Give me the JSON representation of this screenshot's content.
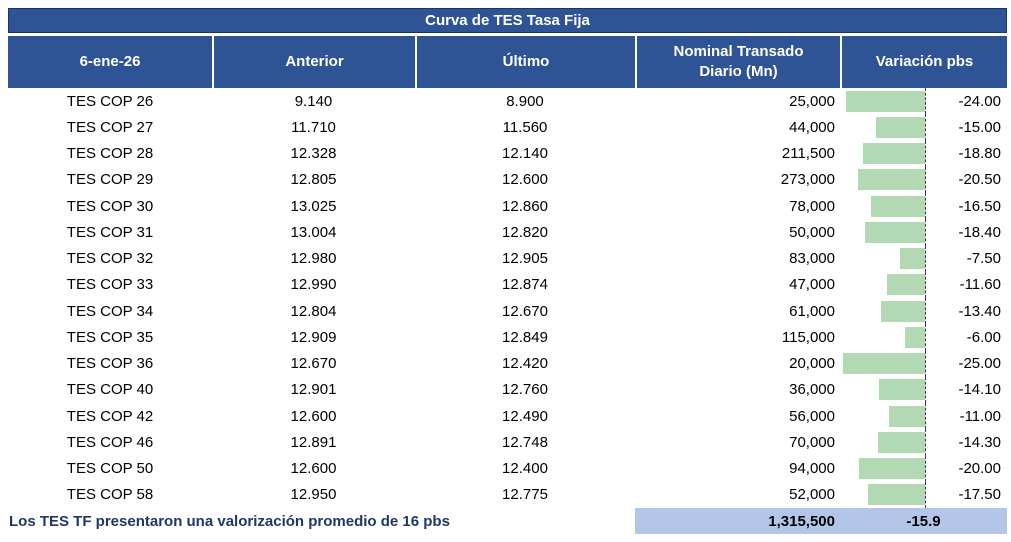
{
  "title": "Curva de TES Tasa Fija",
  "columns": {
    "date": "6-ene-26",
    "anterior": "Anterior",
    "ultimo": "Último",
    "nominal": "Nominal Transado Diario (Mn)",
    "variacion": "Variación pbs"
  },
  "rows": [
    {
      "label": "TES COP 26",
      "anterior": "9.140",
      "ultimo": "8.900",
      "nominal": "25,000",
      "variacion": -24.0,
      "variacion_label": "-24.00"
    },
    {
      "label": "TES COP 27",
      "anterior": "11.710",
      "ultimo": "11.560",
      "nominal": "44,000",
      "variacion": -15.0,
      "variacion_label": "-15.00"
    },
    {
      "label": "TES COP 28",
      "anterior": "12.328",
      "ultimo": "12.140",
      "nominal": "211,500",
      "variacion": -18.8,
      "variacion_label": "-18.80"
    },
    {
      "label": "TES COP 29",
      "anterior": "12.805",
      "ultimo": "12.600",
      "nominal": "273,000",
      "variacion": -20.5,
      "variacion_label": "-20.50"
    },
    {
      "label": "TES COP 30",
      "anterior": "13.025",
      "ultimo": "12.860",
      "nominal": "78,000",
      "variacion": -16.5,
      "variacion_label": "-16.50"
    },
    {
      "label": "TES COP 31",
      "anterior": "13.004",
      "ultimo": "12.820",
      "nominal": "50,000",
      "variacion": -18.4,
      "variacion_label": "-18.40"
    },
    {
      "label": "TES COP 32",
      "anterior": "12.980",
      "ultimo": "12.905",
      "nominal": "83,000",
      "variacion": -7.5,
      "variacion_label": "-7.50"
    },
    {
      "label": "TES COP 33",
      "anterior": "12.990",
      "ultimo": "12.874",
      "nominal": "47,000",
      "variacion": -11.6,
      "variacion_label": "-11.60"
    },
    {
      "label": "TES COP 34",
      "anterior": "12.804",
      "ultimo": "12.670",
      "nominal": "61,000",
      "variacion": -13.4,
      "variacion_label": "-13.40"
    },
    {
      "label": "TES COP 35",
      "anterior": "12.909",
      "ultimo": "12.849",
      "nominal": "115,000",
      "variacion": -6.0,
      "variacion_label": "-6.00"
    },
    {
      "label": "TES COP 36",
      "anterior": "12.670",
      "ultimo": "12.420",
      "nominal": "20,000",
      "variacion": -25.0,
      "variacion_label": "-25.00"
    },
    {
      "label": "TES COP 40",
      "anterior": "12.901",
      "ultimo": "12.760",
      "nominal": "36,000",
      "variacion": -14.1,
      "variacion_label": "-14.10"
    },
    {
      "label": "TES COP 42",
      "anterior": "12.600",
      "ultimo": "12.490",
      "nominal": "56,000",
      "variacion": -11.0,
      "variacion_label": "-11.00"
    },
    {
      "label": "TES COP 46",
      "anterior": "12.891",
      "ultimo": "12.748",
      "nominal": "70,000",
      "variacion": -14.3,
      "variacion_label": "-14.30"
    },
    {
      "label": "TES COP 50",
      "anterior": "12.600",
      "ultimo": "12.400",
      "nominal": "94,000",
      "variacion": -20.0,
      "variacion_label": "-20.00"
    },
    {
      "label": "TES COP 58",
      "anterior": "12.950",
      "ultimo": "12.775",
      "nominal": "52,000",
      "variacion": -17.5,
      "variacion_label": "-17.50"
    }
  ],
  "footer": {
    "note": "Los TES TF presentaron una valorización promedio de 16 pbs",
    "total_nominal": "1,315,500",
    "avg_variacion": "-15.9"
  },
  "colors": {
    "header_blue": "#2F5496",
    "title_border": "#17375E",
    "band_blue": "#B4C6E7",
    "bar_green": "#B2D9B4",
    "note_navy": "#1F3864"
  },
  "chart_data": {
    "type": "table",
    "title": "Curva de TES Tasa Fija",
    "columns": [
      "6-ene-26",
      "Anterior",
      "Último",
      "Nominal Transado Diario (Mn)",
      "Variación pbs"
    ],
    "rows": [
      [
        "TES COP 26",
        9.14,
        8.9,
        25000,
        -24.0
      ],
      [
        "TES COP 27",
        11.71,
        11.56,
        44000,
        -15.0
      ],
      [
        "TES COP 28",
        12.328,
        12.14,
        211500,
        -18.8
      ],
      [
        "TES COP 29",
        12.805,
        12.6,
        273000,
        -20.5
      ],
      [
        "TES COP 30",
        13.025,
        12.86,
        78000,
        -16.5
      ],
      [
        "TES COP 31",
        13.004,
        12.82,
        50000,
        -18.4
      ],
      [
        "TES COP 32",
        12.98,
        12.905,
        83000,
        -7.5
      ],
      [
        "TES COP 33",
        12.99,
        12.874,
        47000,
        -11.6
      ],
      [
        "TES COP 34",
        12.804,
        12.67,
        61000,
        -13.4
      ],
      [
        "TES COP 35",
        12.909,
        12.849,
        115000,
        -6.0
      ],
      [
        "TES COP 36",
        12.67,
        12.42,
        20000,
        -25.0
      ],
      [
        "TES COP 40",
        12.901,
        12.76,
        36000,
        -14.1
      ],
      [
        "TES COP 42",
        12.6,
        12.49,
        56000,
        -11.0
      ],
      [
        "TES COP 46",
        12.891,
        12.748,
        70000,
        -14.3
      ],
      [
        "TES COP 50",
        12.6,
        12.4,
        94000,
        -20.0
      ],
      [
        "TES COP 58",
        12.95,
        12.775,
        52000,
        -17.5
      ]
    ],
    "totals": {
      "nominal_transado_diario": 1315500,
      "variacion_promedio_pbs": -15.9
    },
    "bars": {
      "column": "Variación pbs",
      "orientation": "horizontal-negative-left",
      "axis_zero": "right edge of bar zone (dashed line)",
      "axis_range_pbs": [
        -25,
        0
      ]
    }
  }
}
